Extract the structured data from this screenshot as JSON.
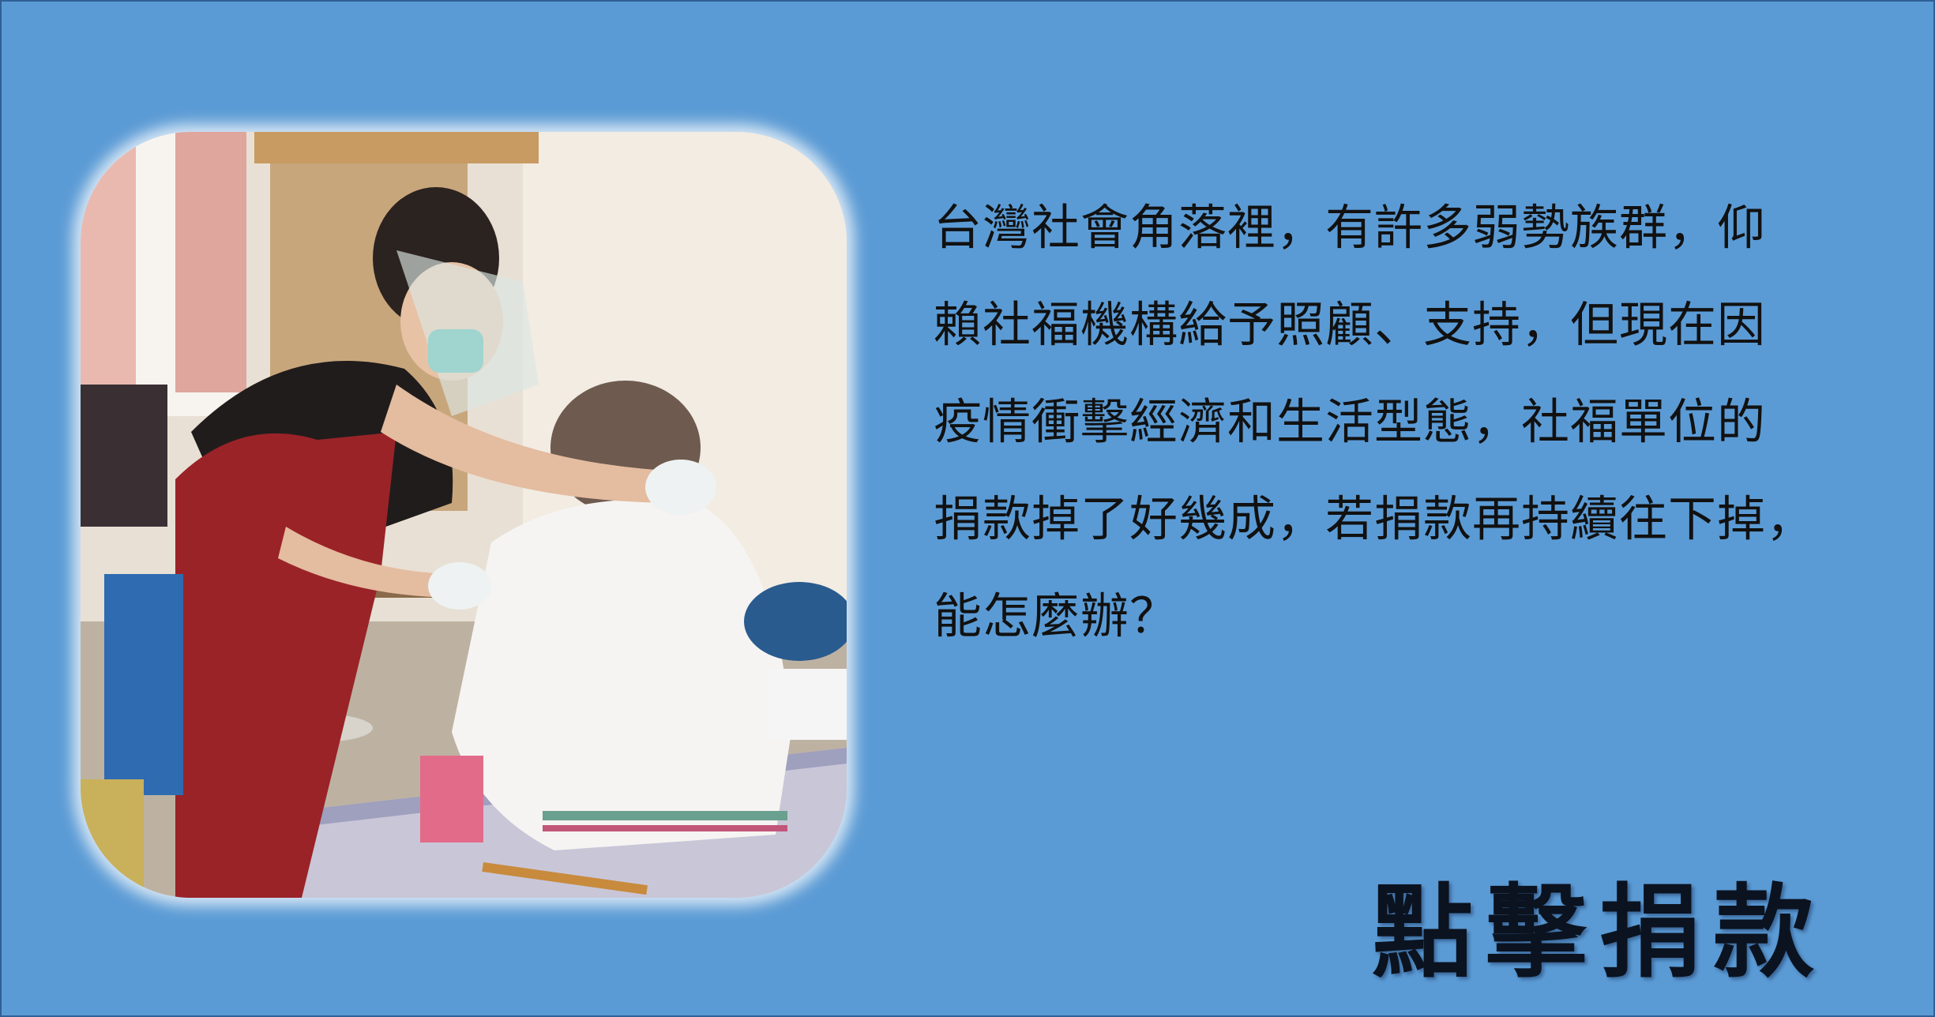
{
  "photo": {
    "alt": "volunteer-helping-elderly-person-dress"
  },
  "paragraph": {
    "lines": [
      "台灣社會角落裡，有許多弱勢族群，仰",
      "賴社福機構給予照顧、支持，但現在因",
      "疫情衝擊經濟和生活型態，社福單位的",
      "捐款掉了好幾成，若捐款再持續往下掉，",
      "能怎麼辦？"
    ]
  },
  "cta": {
    "label": "點擊捐款"
  },
  "colors": {
    "background": "#5b9bd5",
    "text": "#111111"
  }
}
